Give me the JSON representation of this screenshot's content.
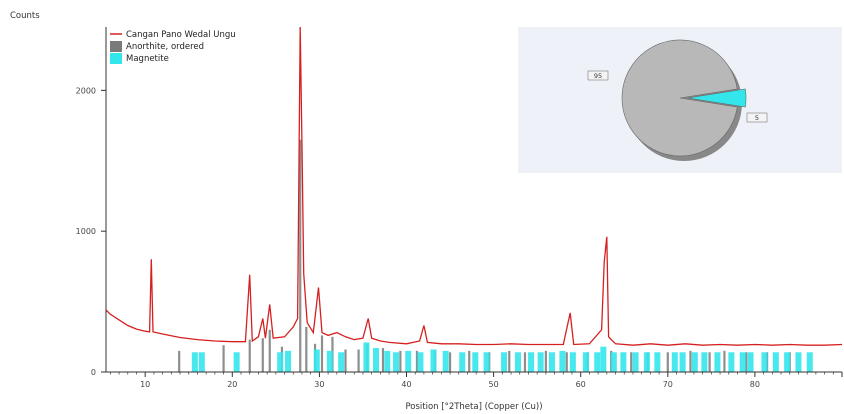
{
  "chart_data": {
    "type": "line",
    "ylabel": "Counts",
    "xlabel": "Position [°2Theta] (Copper (Cu))",
    "x_range": [
      5.5,
      90
    ],
    "y_range": [
      0,
      2450
    ],
    "x_ticks": [
      10,
      20,
      30,
      40,
      50,
      60,
      70,
      80
    ],
    "y_ticks": [
      0,
      1000,
      2000
    ],
    "grid": false,
    "legend": {
      "position": "top-left",
      "entries": [
        {
          "label": "Cangan Pano Wedal Ungu",
          "color": "#d62020",
          "kind": "line"
        },
        {
          "label": "Anorthite, ordered",
          "color": "#7a7a7a",
          "kind": "bar"
        },
        {
          "label": "Magnetite",
          "color": "#33e6ec",
          "kind": "bar"
        }
      ]
    },
    "pattern": {
      "name": "Cangan Pano Wedal Ungu",
      "color": "#d62020",
      "points": [
        [
          5.5,
          440
        ],
        [
          6,
          410
        ],
        [
          7,
          370
        ],
        [
          8,
          330
        ],
        [
          9,
          305
        ],
        [
          10,
          290
        ],
        [
          10.5,
          285
        ],
        [
          10.7,
          800
        ],
        [
          10.9,
          285
        ],
        [
          12,
          270
        ],
        [
          14,
          245
        ],
        [
          16,
          230
        ],
        [
          18,
          220
        ],
        [
          20,
          215
        ],
        [
          21.5,
          215
        ],
        [
          22,
          690
        ],
        [
          22.3,
          220
        ],
        [
          23,
          250
        ],
        [
          23.5,
          380
        ],
        [
          23.8,
          240
        ],
        [
          24.3,
          480
        ],
        [
          24.7,
          240
        ],
        [
          26,
          250
        ],
        [
          27,
          320
        ],
        [
          27.5,
          380
        ],
        [
          27.8,
          2450
        ],
        [
          28,
          1600
        ],
        [
          28.2,
          700
        ],
        [
          28.6,
          350
        ],
        [
          29.3,
          280
        ],
        [
          29.9,
          600
        ],
        [
          30.3,
          280
        ],
        [
          31,
          260
        ],
        [
          32,
          280
        ],
        [
          33,
          250
        ],
        [
          34,
          230
        ],
        [
          35,
          240
        ],
        [
          35.6,
          380
        ],
        [
          36,
          240
        ],
        [
          37,
          220
        ],
        [
          38,
          210
        ],
        [
          40,
          200
        ],
        [
          41.5,
          220
        ],
        [
          42,
          330
        ],
        [
          42.4,
          210
        ],
        [
          44,
          200
        ],
        [
          46,
          200
        ],
        [
          48,
          195
        ],
        [
          50,
          195
        ],
        [
          52,
          200
        ],
        [
          54,
          195
        ],
        [
          56,
          195
        ],
        [
          58,
          195
        ],
        [
          58.8,
          420
        ],
        [
          59.2,
          195
        ],
        [
          61,
          200
        ],
        [
          62.4,
          300
        ],
        [
          62.7,
          780
        ],
        [
          63,
          960
        ],
        [
          63.2,
          250
        ],
        [
          64,
          200
        ],
        [
          66,
          190
        ],
        [
          68,
          200
        ],
        [
          70,
          190
        ],
        [
          72,
          200
        ],
        [
          74,
          190
        ],
        [
          76,
          195
        ],
        [
          78,
          190
        ],
        [
          80,
          195
        ],
        [
          82,
          190
        ],
        [
          84,
          195
        ],
        [
          86,
          190
        ],
        [
          88,
          190
        ],
        [
          90,
          195
        ]
      ]
    },
    "reference_patterns": [
      {
        "name": "Anorthite, ordered",
        "color": "#7a7a7a",
        "peaks": [
          [
            13.9,
            150
          ],
          [
            19,
            190
          ],
          [
            22,
            230
          ],
          [
            23.5,
            240
          ],
          [
            24.3,
            300
          ],
          [
            25.7,
            180
          ],
          [
            27.8,
            1650
          ],
          [
            28.5,
            320
          ],
          [
            29.5,
            200
          ],
          [
            30.3,
            260
          ],
          [
            31.5,
            250
          ],
          [
            33,
            160
          ],
          [
            34.5,
            160
          ],
          [
            35.5,
            200
          ],
          [
            37.3,
            170
          ],
          [
            39.3,
            150
          ],
          [
            41.2,
            150
          ],
          [
            43.3,
            150
          ],
          [
            45,
            140
          ],
          [
            47.2,
            150
          ],
          [
            49.5,
            140
          ],
          [
            51.8,
            150
          ],
          [
            53.6,
            140
          ],
          [
            56,
            150
          ],
          [
            58.4,
            140
          ],
          [
            60.8,
            140
          ],
          [
            63.5,
            150
          ],
          [
            65.8,
            140
          ],
          [
            67.7,
            140
          ],
          [
            70,
            140
          ],
          [
            72.6,
            150
          ],
          [
            74.8,
            140
          ],
          [
            76.5,
            150
          ],
          [
            79,
            140
          ],
          [
            81.4,
            140
          ],
          [
            84,
            140
          ]
        ]
      },
      {
        "name": "Magnetite",
        "color": "#33e6ec",
        "peaks": [
          [
            15.7,
            140
          ],
          [
            16.5,
            140
          ],
          [
            20.5,
            140
          ],
          [
            25.5,
            140
          ],
          [
            26.4,
            150
          ],
          [
            29.7,
            160
          ],
          [
            31.2,
            150
          ],
          [
            32.5,
            140
          ],
          [
            35.4,
            210
          ],
          [
            36.5,
            170
          ],
          [
            37.8,
            150
          ],
          [
            38.8,
            140
          ],
          [
            40.2,
            150
          ],
          [
            41.6,
            140
          ],
          [
            43.1,
            160
          ],
          [
            44.5,
            150
          ],
          [
            46.4,
            140
          ],
          [
            47.9,
            140
          ],
          [
            49.2,
            140
          ],
          [
            51.2,
            140
          ],
          [
            52.8,
            140
          ],
          [
            54.3,
            140
          ],
          [
            55.4,
            140
          ],
          [
            56.7,
            140
          ],
          [
            57.9,
            150
          ],
          [
            59.1,
            140
          ],
          [
            60.6,
            140
          ],
          [
            61.9,
            140
          ],
          [
            62.6,
            180
          ],
          [
            63.8,
            140
          ],
          [
            64.9,
            140
          ],
          [
            66.3,
            140
          ],
          [
            67.6,
            140
          ],
          [
            68.8,
            140
          ],
          [
            70.8,
            140
          ],
          [
            71.7,
            140
          ],
          [
            73.1,
            140
          ],
          [
            74.2,
            140
          ],
          [
            75.7,
            140
          ],
          [
            77.3,
            140
          ],
          [
            78.6,
            140
          ],
          [
            79.5,
            140
          ],
          [
            81.1,
            140
          ],
          [
            82.4,
            140
          ],
          [
            83.7,
            140
          ],
          [
            85,
            140
          ],
          [
            86.3,
            140
          ]
        ]
      }
    ],
    "pie": {
      "type": "pie",
      "slices": [
        {
          "label": "Anorthite, ordered",
          "value": 95,
          "color": "#b8b8b8",
          "value_label": "95"
        },
        {
          "label": "Magnetite",
          "value": 5,
          "color": "#33e6ec",
          "value_label": "5"
        }
      ]
    }
  }
}
